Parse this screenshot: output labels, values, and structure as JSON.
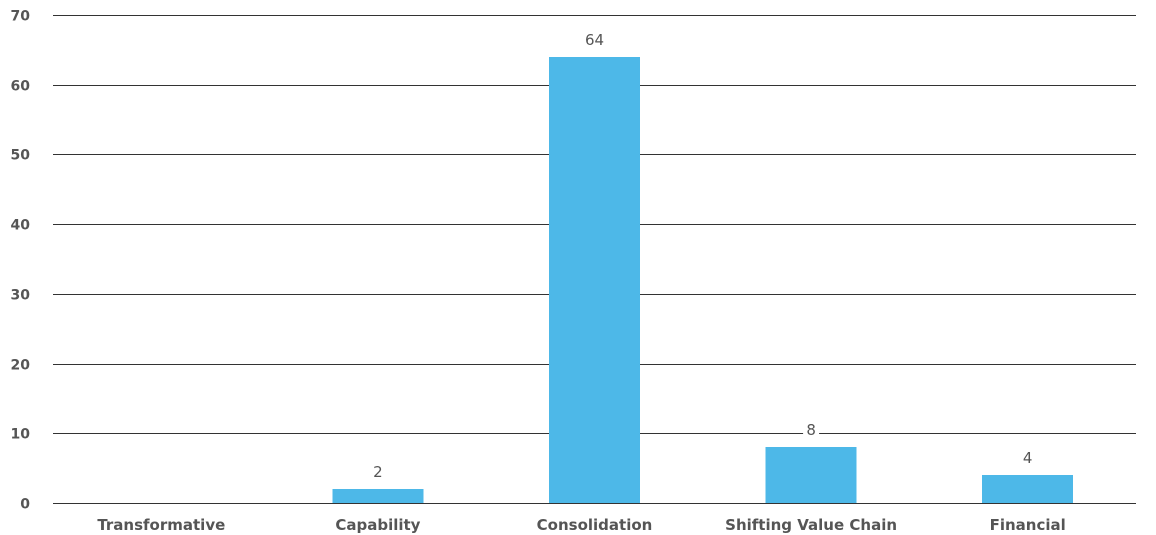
{
  "chart_data": {
    "type": "bar",
    "title": "",
    "xlabel": "",
    "ylabel": "",
    "categories": [
      "Transformative",
      "Capability",
      "Consolidation",
      "Shifting Value Chain",
      "Financial"
    ],
    "values": [
      0,
      2,
      64,
      8,
      4
    ],
    "data_labels": [
      "",
      "2",
      "64",
      "8",
      "4"
    ],
    "ylim": [
      0,
      70
    ],
    "yticks": [
      0,
      10,
      20,
      30,
      40,
      50,
      60,
      70
    ],
    "grid": true,
    "legend": "none",
    "colors": {
      "bar": "#4db8e8",
      "grid": "#333333",
      "text": "#555555"
    }
  }
}
